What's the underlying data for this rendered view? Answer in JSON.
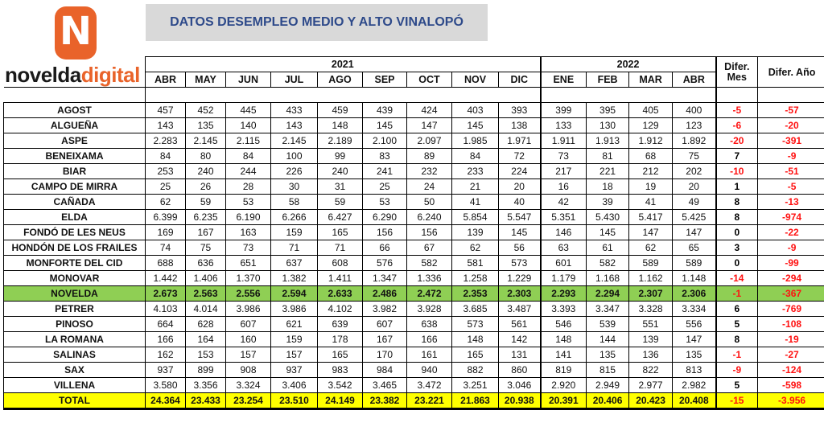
{
  "brand": {
    "name_part1": "novelda",
    "name_part2": "digital",
    "mark_letter": "N",
    "accent": "#e9632a"
  },
  "title": "DATOS  DESEMPLEO MEDIO Y ALTO VINALOPÓ",
  "headers": {
    "year1": "2021",
    "year2": "2022",
    "dif_mes_1": "Difer.",
    "dif_mes_2": "Mes",
    "dif_ano": "Difer. Año",
    "months_2021": [
      "ABR",
      "MAY",
      "JUN",
      "JUL",
      "AGO",
      "SEP",
      "OCT",
      "NOV",
      "DIC"
    ],
    "months_2022": [
      "ENE",
      "FEB",
      "MAR",
      "ABR"
    ]
  },
  "rows": [
    {
      "name": "AGOST",
      "v2021": [
        "457",
        "452",
        "445",
        "433",
        "459",
        "439",
        "424",
        "403",
        "393"
      ],
      "v2022": [
        "399",
        "395",
        "405",
        "400"
      ],
      "dm": "-5",
      "da": "-57"
    },
    {
      "name": "ALGUEÑA",
      "v2021": [
        "143",
        "135",
        "140",
        "143",
        "148",
        "145",
        "147",
        "145",
        "138"
      ],
      "v2022": [
        "133",
        "130",
        "129",
        "123"
      ],
      "dm": "-6",
      "da": "-20"
    },
    {
      "name": "ASPE",
      "v2021": [
        "2.283",
        "2.145",
        "2.115",
        "2.145",
        "2.189",
        "2.100",
        "2.097",
        "1.985",
        "1.971"
      ],
      "v2022": [
        "1.911",
        "1.913",
        "1.912",
        "1.892"
      ],
      "dm": "-20",
      "da": "-391"
    },
    {
      "name": "BENEIXAMA",
      "v2021": [
        "84",
        "80",
        "84",
        "100",
        "99",
        "83",
        "89",
        "84",
        "72"
      ],
      "v2022": [
        "73",
        "81",
        "68",
        "75"
      ],
      "dm": "7",
      "da": "-9"
    },
    {
      "name": "BIAR",
      "v2021": [
        "253",
        "240",
        "244",
        "226",
        "240",
        "241",
        "232",
        "233",
        "224"
      ],
      "v2022": [
        "217",
        "221",
        "212",
        "202"
      ],
      "dm": "-10",
      "da": "-51"
    },
    {
      "name": "CAMPO DE MIRRA",
      "v2021": [
        "25",
        "26",
        "28",
        "30",
        "31",
        "25",
        "24",
        "21",
        "20"
      ],
      "v2022": [
        "16",
        "18",
        "19",
        "20"
      ],
      "dm": "1",
      "da": "-5"
    },
    {
      "name": "CAÑADA",
      "v2021": [
        "62",
        "59",
        "53",
        "58",
        "59",
        "53",
        "50",
        "41",
        "40"
      ],
      "v2022": [
        "42",
        "39",
        "41",
        "49"
      ],
      "dm": "8",
      "da": "-13"
    },
    {
      "name": "ELDA",
      "v2021": [
        "6.399",
        "6.235",
        "6.190",
        "6.266",
        "6.427",
        "6.290",
        "6.240",
        "5.854",
        "5.547"
      ],
      "v2022": [
        "5.351",
        "5.430",
        "5.417",
        "5.425"
      ],
      "dm": "8",
      "da": "-974"
    },
    {
      "name": "FONDÓ DE LES NEUS",
      "v2021": [
        "169",
        "167",
        "163",
        "159",
        "165",
        "156",
        "156",
        "139",
        "145"
      ],
      "v2022": [
        "146",
        "145",
        "147",
        "147"
      ],
      "dm": "0",
      "da": "-22"
    },
    {
      "name": "HONDÓN DE LOS FRAILES",
      "v2021": [
        "74",
        "75",
        "73",
        "71",
        "71",
        "66",
        "67",
        "62",
        "56"
      ],
      "v2022": [
        "63",
        "61",
        "62",
        "65"
      ],
      "dm": "3",
      "da": "-9"
    },
    {
      "name": "MONFORTE DEL CID",
      "v2021": [
        "688",
        "636",
        "651",
        "637",
        "608",
        "576",
        "582",
        "581",
        "573"
      ],
      "v2022": [
        "601",
        "582",
        "589",
        "589"
      ],
      "dm": "0",
      "da": "-99"
    },
    {
      "name": "MONOVAR",
      "v2021": [
        "1.442",
        "1.406",
        "1.370",
        "1.382",
        "1.411",
        "1.347",
        "1.336",
        "1.258",
        "1.229"
      ],
      "v2022": [
        "1.179",
        "1.168",
        "1.162",
        "1.148"
      ],
      "dm": "-14",
      "da": "-294"
    },
    {
      "name": "NOVELDA",
      "v2021": [
        "2.673",
        "2.563",
        "2.556",
        "2.594",
        "2.633",
        "2.486",
        "2.472",
        "2.353",
        "2.303"
      ],
      "v2022": [
        "2.293",
        "2.294",
        "2.307",
        "2.306"
      ],
      "dm": "-1",
      "da": "-367",
      "highlight": "novelda"
    },
    {
      "name": "PETRER",
      "v2021": [
        "4.103",
        "4.014",
        "3.986",
        "3.986",
        "4.102",
        "3.982",
        "3.928",
        "3.685",
        "3.487"
      ],
      "v2022": [
        "3.393",
        "3.347",
        "3.328",
        "3.334"
      ],
      "dm": "6",
      "da": "-769"
    },
    {
      "name": "PINOSO",
      "v2021": [
        "664",
        "628",
        "607",
        "621",
        "639",
        "607",
        "638",
        "573",
        "561"
      ],
      "v2022": [
        "546",
        "539",
        "551",
        "556"
      ],
      "dm": "5",
      "da": "-108"
    },
    {
      "name": "LA ROMANA",
      "v2021": [
        "166",
        "164",
        "160",
        "159",
        "178",
        "167",
        "166",
        "148",
        "142"
      ],
      "v2022": [
        "148",
        "144",
        "139",
        "147"
      ],
      "dm": "8",
      "da": "-19"
    },
    {
      "name": "SALINAS",
      "v2021": [
        "162",
        "153",
        "157",
        "157",
        "165",
        "170",
        "161",
        "165",
        "131"
      ],
      "v2022": [
        "141",
        "135",
        "136",
        "135"
      ],
      "dm": "-1",
      "da": "-27"
    },
    {
      "name": "SAX",
      "v2021": [
        "937",
        "899",
        "908",
        "937",
        "983",
        "984",
        "940",
        "882",
        "860"
      ],
      "v2022": [
        "819",
        "815",
        "822",
        "813"
      ],
      "dm": "-9",
      "da": "-124"
    },
    {
      "name": "VILLENA",
      "v2021": [
        "3.580",
        "3.356",
        "3.324",
        "3.406",
        "3.542",
        "3.465",
        "3.472",
        "3.251",
        "3.046"
      ],
      "v2022": [
        "2.920",
        "2.949",
        "2.977",
        "2.982"
      ],
      "dm": "5",
      "da": "-598"
    },
    {
      "name": "TOTAL",
      "v2021": [
        "24.364",
        "23.433",
        "23.254",
        "23.510",
        "24.149",
        "23.382",
        "23.221",
        "21.863",
        "20.938"
      ],
      "v2022": [
        "20.391",
        "20.406",
        "20.423",
        "20.408"
      ],
      "dm": "-15",
      "da": "-3.956",
      "highlight": "total"
    }
  ],
  "colors": {
    "novelda_row": "#8fcf54",
    "total_row": "#ffff00",
    "negative": "#ff1111",
    "title_text": "#2e4a8a"
  }
}
